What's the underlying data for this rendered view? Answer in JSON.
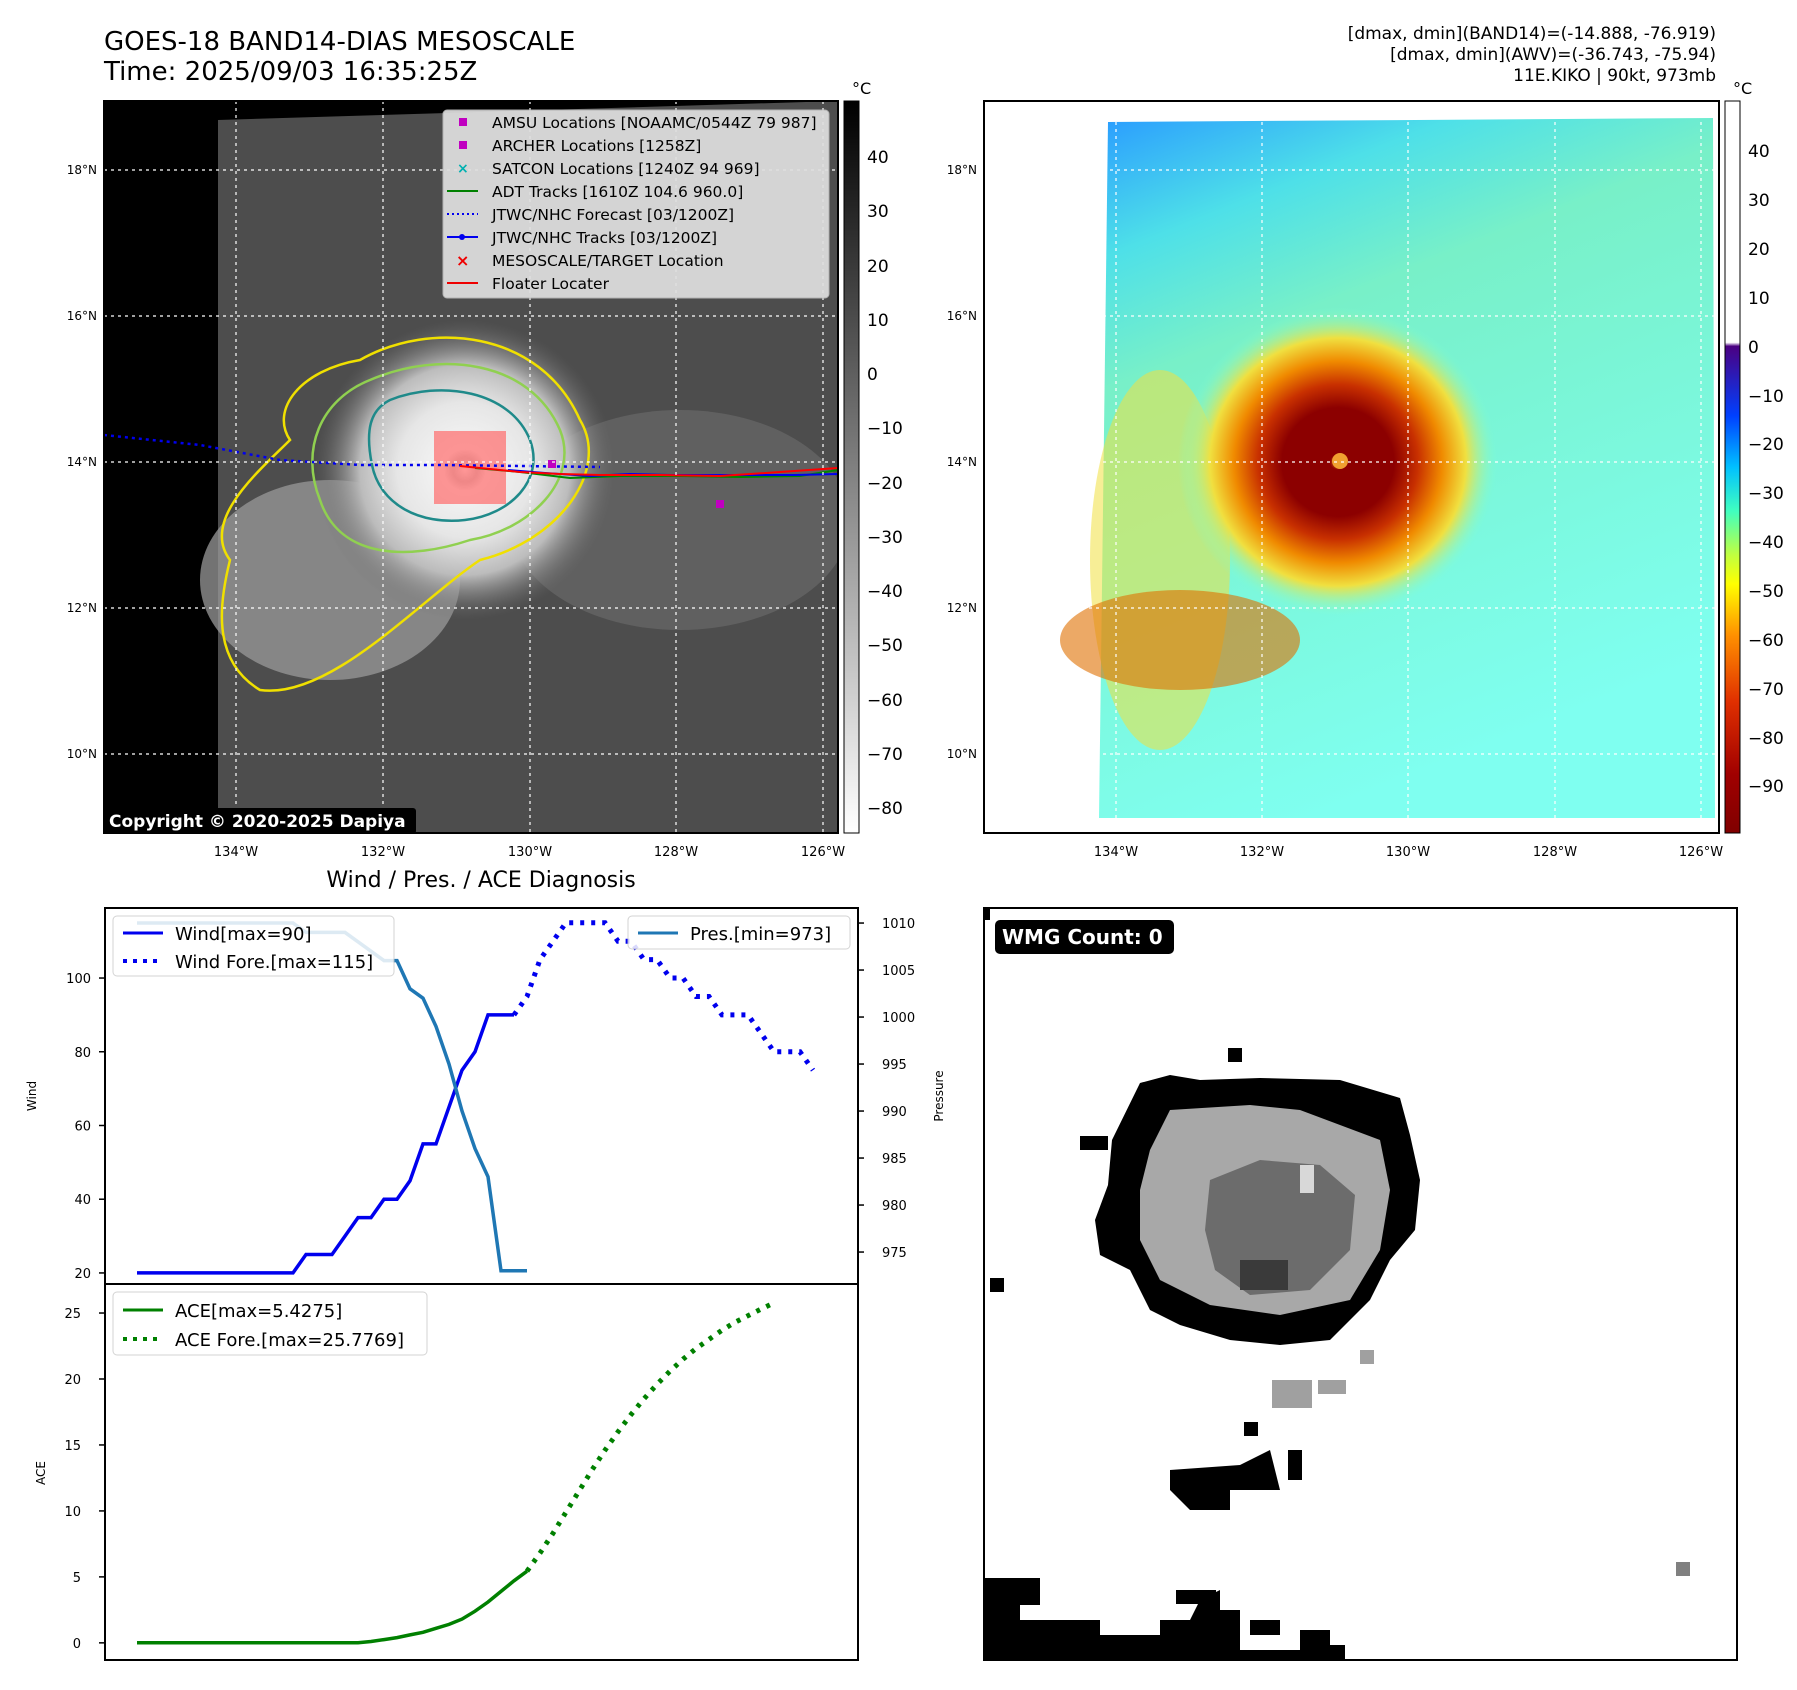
{
  "title": {
    "line1": "GOES-18 BAND14-DIAS MESOSCALE",
    "line2": "Time: 2025/09/03 16:35:25Z"
  },
  "info": {
    "line1": "[dmax, dmin](BAND14)=(-14.888, -76.919)",
    "line2": "[dmax, dmin](AWV)=(-36.743, -75.94)",
    "line3": "11E.KIKO | 90kt, 973mb"
  },
  "map": {
    "lon_ticks": [
      "134°W",
      "132°W",
      "130°W",
      "128°W",
      "126°W"
    ],
    "lat_ticks": [
      "18°N",
      "16°N",
      "14°N",
      "12°N",
      "10°N"
    ],
    "copyright": "Copyright © 2020-2025 Dapiya",
    "legend": [
      "AMSU Locations [NOAAMC/0544Z 79 987]",
      "ARCHER Locations [1258Z]",
      "SATCON Locations [1240Z 94 969]",
      "ADT Tracks [1610Z 104.6 960.0]",
      "JTWC/NHC Forecast [03/1200Z]",
      "JTWC/NHC Tracks [03/1200Z]",
      "MESOSCALE/TARGET Location",
      "Floater Locater"
    ]
  },
  "colorbar1": {
    "unit": "°C",
    "ticks": [
      "40",
      "30",
      "20",
      "10",
      "0",
      "−10",
      "−20",
      "−30",
      "−40",
      "−50",
      "−60",
      "−70",
      "−80"
    ]
  },
  "colorbar2": {
    "unit": "°C",
    "ticks": [
      "40",
      "30",
      "20",
      "10",
      "0",
      "−10",
      "−20",
      "−30",
      "−40",
      "−50",
      "−60",
      "−70",
      "−80",
      "−90"
    ]
  },
  "wmg": {
    "label": "WMG Count: 0"
  },
  "chart_data": [
    {
      "type": "line",
      "title": "Wind / Pres. / ACE Diagnosis",
      "ylabel": "Wind",
      "ylabel2": "Pressure",
      "ylim": [
        17,
        119
      ],
      "ylim2": [
        971.6,
        1011.6
      ],
      "yticks": [
        "20",
        "40",
        "60",
        "80",
        "100"
      ],
      "yticks2": [
        "975",
        "980",
        "985",
        "990",
        "995",
        "1000",
        "1005",
        "1010"
      ],
      "series": [
        {
          "name": "Wind[max=90]",
          "color": "#0000ee",
          "style": "solid",
          "values": [
            20,
            20,
            20,
            20,
            20,
            20,
            20,
            20,
            20,
            20,
            20,
            20,
            20,
            25,
            25,
            25,
            30,
            35,
            35,
            40,
            40,
            45,
            55,
            55,
            65,
            75,
            80,
            90,
            90,
            90
          ]
        },
        {
          "name": "Wind Fore.[max=115]",
          "color": "#0000ee",
          "style": "dotted",
          "start": 29,
          "values": [
            90,
            95,
            105,
            110,
            115,
            115,
            115,
            115,
            110,
            110,
            105,
            105,
            100,
            100,
            95,
            95,
            90,
            90,
            90,
            85,
            80,
            80,
            80,
            75
          ]
        },
        {
          "name": "Pres.[min=973]",
          "color": "#1f77b4",
          "style": "solid",
          "axis": "right",
          "values": [
            1010,
            1010,
            1010,
            1010,
            1010,
            1010,
            1010,
            1010,
            1010,
            1010,
            1010,
            1010,
            1010,
            1009,
            1009,
            1009,
            1009,
            1008,
            1007,
            1006,
            1006,
            1003,
            1002,
            999,
            995,
            990,
            986,
            983,
            973,
            973,
            973
          ]
        }
      ]
    },
    {
      "type": "line",
      "ylabel": "ACE",
      "ylim": [
        -1.3,
        27.2
      ],
      "yticks": [
        "0",
        "5",
        "10",
        "15",
        "20",
        "25"
      ],
      "series": [
        {
          "name": "ACE[max=5.4275]",
          "color": "#008000",
          "style": "solid",
          "values": [
            0,
            0,
            0,
            0,
            0,
            0,
            0,
            0,
            0,
            0,
            0,
            0,
            0,
            0,
            0,
            0,
            0,
            0,
            0.1,
            0.25,
            0.4,
            0.6,
            0.8,
            1.1,
            1.4,
            1.8,
            2.4,
            3.1,
            3.9,
            4.7,
            5.43
          ]
        },
        {
          "name": "ACE Fore.[max=25.7769]",
          "color": "#008000",
          "style": "dotted",
          "start": 30,
          "values": [
            5.43,
            6.8,
            8.3,
            9.9,
            11.5,
            13.1,
            14.6,
            16.0,
            17.3,
            18.5,
            19.6,
            20.6,
            21.5,
            22.3,
            23.0,
            23.7,
            24.3,
            24.8,
            25.3,
            25.77
          ]
        }
      ]
    }
  ]
}
